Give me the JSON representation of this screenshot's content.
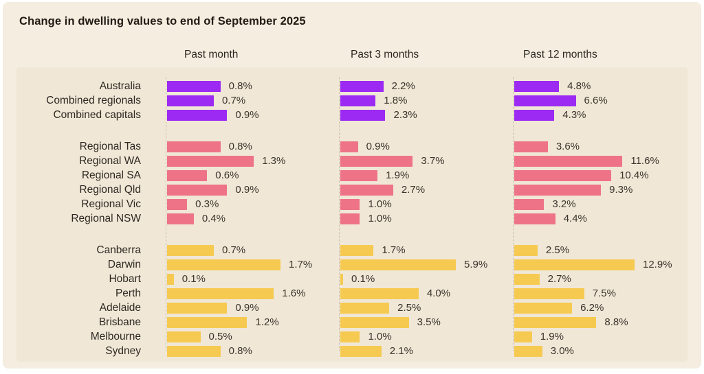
{
  "title": "Change in dwelling values to end of September 2025",
  "colors": {
    "national_bar": "#9c2af2",
    "regional_bar": "#ee7386",
    "capital_bar": "#f6ca51",
    "card_background": "#f4ede0",
    "panel_background": "#f0e7d7"
  },
  "chart_data": {
    "type": "bar",
    "orientation": "horizontal",
    "title": "Change in dwelling values to end of September 2025",
    "value_unit": "%",
    "value_format": "one_decimal_percent",
    "panels": [
      {
        "label": "Past month"
      },
      {
        "label": "Past 3 months"
      },
      {
        "label": "Past 12 months"
      }
    ],
    "panel_max_values": [
      1.7,
      5.9,
      12.9
    ],
    "groups": [
      {
        "name": "national",
        "color": "#9c2af2",
        "rows": [
          {
            "label": "Australia",
            "values": [
              0.8,
              2.2,
              4.8
            ]
          },
          {
            "label": "Combined regionals",
            "values": [
              0.7,
              1.8,
              6.6
            ]
          },
          {
            "label": "Combined capitals",
            "values": [
              0.9,
              2.3,
              4.3
            ]
          }
        ]
      },
      {
        "name": "regional",
        "color": "#ee7386",
        "rows": [
          {
            "label": "Regional Tas",
            "values": [
              0.8,
              0.9,
              3.6
            ]
          },
          {
            "label": "Regional WA",
            "values": [
              1.3,
              3.7,
              11.6
            ]
          },
          {
            "label": "Regional SA",
            "values": [
              0.6,
              1.9,
              10.4
            ]
          },
          {
            "label": "Regional Qld",
            "values": [
              0.9,
              2.7,
              9.3
            ]
          },
          {
            "label": "Regional Vic",
            "values": [
              0.3,
              1.0,
              3.2
            ]
          },
          {
            "label": "Regional NSW",
            "values": [
              0.4,
              1.0,
              4.4
            ]
          }
        ]
      },
      {
        "name": "capitals",
        "color": "#f6ca51",
        "rows": [
          {
            "label": "Canberra",
            "values": [
              0.7,
              1.7,
              2.5
            ]
          },
          {
            "label": "Darwin",
            "values": [
              1.7,
              5.9,
              12.9
            ]
          },
          {
            "label": "Hobart",
            "values": [
              0.1,
              0.1,
              2.7
            ]
          },
          {
            "label": "Perth",
            "values": [
              1.6,
              4.0,
              7.5
            ]
          },
          {
            "label": "Adelaide",
            "values": [
              0.9,
              2.5,
              6.2
            ]
          },
          {
            "label": "Brisbane",
            "values": [
              1.2,
              3.5,
              8.8
            ]
          },
          {
            "label": "Melbourne",
            "values": [
              0.5,
              1.0,
              1.9
            ]
          },
          {
            "label": "Sydney",
            "values": [
              0.8,
              2.1,
              3.0
            ]
          }
        ]
      }
    ]
  }
}
